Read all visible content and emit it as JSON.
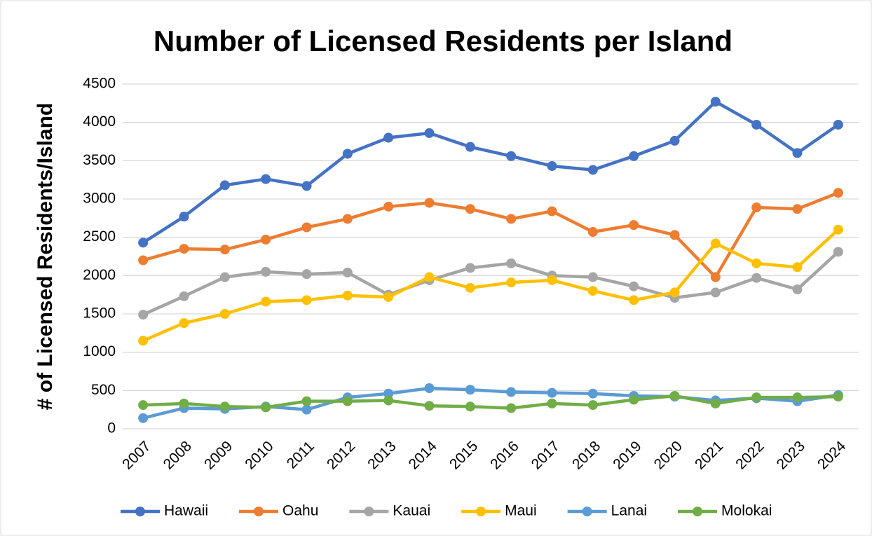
{
  "chart_data": {
    "type": "line",
    "title": "Number of Licensed Residents per Island",
    "y_label": "# of Licensed Residents/Island",
    "categories": [
      "2007",
      "2008",
      "2009",
      "2010",
      "2011",
      "2012",
      "2013",
      "2014",
      "2015",
      "2016",
      "2017",
      "2018",
      "2019",
      "2020",
      "2021",
      "2022",
      "2023",
      "2024"
    ],
    "series": [
      {
        "name": "Hawaii",
        "color": "#4472c4",
        "values": [
          2430,
          2770,
          3180,
          3260,
          3170,
          3590,
          3800,
          3860,
          3680,
          3560,
          3430,
          3380,
          3560,
          3760,
          4270,
          3970,
          3600,
          3970
        ]
      },
      {
        "name": "Oahu",
        "color": "#ed7d31",
        "values": [
          2200,
          2350,
          2340,
          2470,
          2630,
          2740,
          2900,
          2950,
          2870,
          2740,
          2840,
          2570,
          2660,
          2530,
          1980,
          2890,
          2870,
          3080
        ]
      },
      {
        "name": "Kauai",
        "color": "#a5a5a5",
        "values": [
          1490,
          1730,
          1980,
          2050,
          2020,
          2040,
          1750,
          1940,
          2100,
          2160,
          2000,
          1980,
          1860,
          1710,
          1780,
          1970,
          1820,
          2310
        ]
      },
      {
        "name": "Maui",
        "color": "#ffc000",
        "values": [
          1150,
          1380,
          1500,
          1660,
          1680,
          1740,
          1720,
          1980,
          1840,
          1910,
          1940,
          1800,
          1680,
          1780,
          2420,
          2160,
          2110,
          2600
        ]
      },
      {
        "name": "Lanai",
        "color": "#5b9bd5",
        "values": [
          140,
          270,
          260,
          290,
          250,
          410,
          460,
          530,
          510,
          480,
          470,
          460,
          430,
          420,
          370,
          400,
          360,
          440
        ]
      },
      {
        "name": "Molokai",
        "color": "#70ad47",
        "values": [
          310,
          330,
          290,
          280,
          360,
          360,
          370,
          300,
          290,
          270,
          330,
          310,
          380,
          430,
          330,
          410,
          410,
          420
        ]
      }
    ],
    "ylim": [
      0,
      4500
    ],
    "yticks": [
      0,
      500,
      1000,
      1500,
      2000,
      2500,
      3000,
      3500,
      4000,
      4500
    ],
    "grid": true,
    "legend": "bottom"
  }
}
